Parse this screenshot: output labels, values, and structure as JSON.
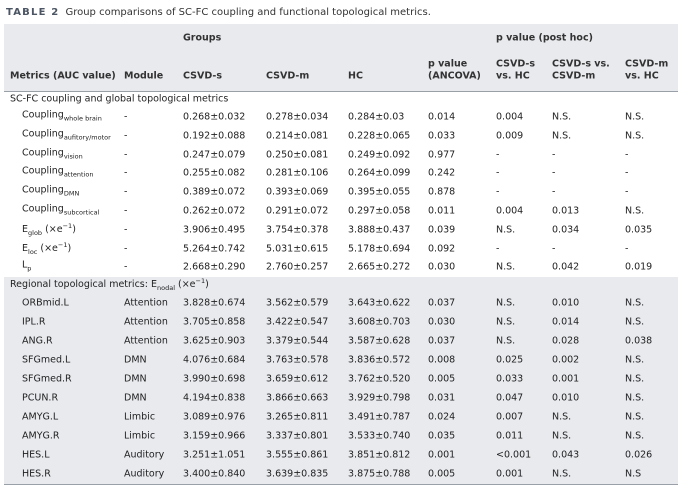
{
  "caption": {
    "number": "TABLE 2",
    "title": "Group comparisons of SC-FC coupling and functional topological metrics."
  },
  "header": {
    "groups": "Groups",
    "posthoc": "p value (post hoc)",
    "columns": [
      [
        "Metrics (AUC value)"
      ],
      [
        "Module"
      ],
      [
        "CSVD-s"
      ],
      [
        "CSVD-m"
      ],
      [
        "HC"
      ],
      [
        "p value",
        "(ANCOVA)"
      ],
      [
        "CSVD-s",
        "vs. HC"
      ],
      [
        "CSVD-s vs.",
        "CSVD-m"
      ],
      [
        "CSVD-m",
        "vs. HC"
      ]
    ]
  },
  "sections": [
    {
      "title": {
        "text": "SC-FC coupling and global topological metrics"
      },
      "rows": [
        {
          "label": {
            "text": "Coupling",
            "sub": "whole brain"
          },
          "cells": [
            "-",
            "0.268±0.032",
            "0.278±0.034",
            "0.284±0.03",
            "0.014",
            "0.004",
            "N.S.",
            "N.S."
          ]
        },
        {
          "label": {
            "text": "Coupling",
            "sub": "aufitory/motor"
          },
          "cells": [
            "-",
            "0.192±0.088",
            "0.214±0.081",
            "0.228±0.065",
            "0.033",
            "0.009",
            "N.S.",
            "N.S."
          ]
        },
        {
          "label": {
            "text": "Coupling",
            "sub": "vision"
          },
          "cells": [
            "-",
            "0.247±0.079",
            "0.250±0.081",
            "0.249±0.092",
            "0.977",
            "-",
            "-",
            "-"
          ]
        },
        {
          "label": {
            "text": "Coupling",
            "sub": "attention"
          },
          "cells": [
            "-",
            "0.255±0.082",
            "0.281±0.106",
            "0.264±0.099",
            "0.242",
            "-",
            "-",
            "-"
          ]
        },
        {
          "label": {
            "text": "Coupling",
            "sub": "DMN"
          },
          "cells": [
            "-",
            "0.389±0.072",
            "0.393±0.069",
            "0.395±0.055",
            "0.878",
            "-",
            "-",
            "-"
          ]
        },
        {
          "label": {
            "text": "Coupling",
            "sub": "subcortical"
          },
          "cells": [
            "-",
            "0.262±0.072",
            "0.291±0.072",
            "0.297±0.058",
            "0.011",
            "0.004",
            "0.013",
            "N.S."
          ]
        },
        {
          "label": {
            "text": "E",
            "sub": "glob",
            "suffix": " (×e",
            "sup": "−1",
            "end": ")"
          },
          "cells": [
            "-",
            "3.906±0.495",
            "3.754±0.378",
            "3.888±0.437",
            "0.039",
            "N.S.",
            "0.034",
            "0.035"
          ]
        },
        {
          "label": {
            "text": "E",
            "sub": "loc",
            "suffix": " (×e",
            "sup": "−1",
            "end": ")"
          },
          "cells": [
            "-",
            "5.264±0.742",
            "5.031±0.615",
            "5.178±0.694",
            "0.092",
            "-",
            "-",
            "-"
          ]
        },
        {
          "label": {
            "text": "L",
            "sub": "p"
          },
          "cells": [
            "-",
            "2.668±0.290",
            "2.760±0.257",
            "2.665±0.272",
            "0.030",
            "N.S.",
            "0.042",
            "0.019"
          ]
        }
      ]
    },
    {
      "title": {
        "text": "Regional topological metrics: E",
        "sub": "nodal",
        "suffix": " (×e",
        "sup": "−1",
        "end": ")"
      },
      "rows": [
        {
          "label": {
            "text": "ORBmid.L"
          },
          "cells": [
            "Attention",
            "3.828±0.674",
            "3.562±0.579",
            "3.643±0.622",
            "0.037",
            "N.S.",
            "0.010",
            "N.S."
          ]
        },
        {
          "label": {
            "text": "IPL.R"
          },
          "cells": [
            "Attention",
            "3.705±0.858",
            "3.422±0.547",
            "3.608±0.703",
            "0.030",
            "N.S.",
            "0.014",
            "N.S."
          ]
        },
        {
          "label": {
            "text": "ANG.R"
          },
          "cells": [
            "Attention",
            "3.625±0.903",
            "3.379±0.544",
            "3.587±0.628",
            "0.037",
            "N.S.",
            "0.028",
            "0.038"
          ]
        },
        {
          "label": {
            "text": "SFGmed.L"
          },
          "cells": [
            "DMN",
            "4.076±0.684",
            "3.763±0.578",
            "3.836±0.572",
            "0.008",
            "0.025",
            "0.002",
            "N.S."
          ]
        },
        {
          "label": {
            "text": "SFGmed.R"
          },
          "cells": [
            "DMN",
            "3.990±0.698",
            "3.659±0.612",
            "3.762±0.520",
            "0.005",
            "0.033",
            "0.001",
            "N.S."
          ]
        },
        {
          "label": {
            "text": "PCUN.R"
          },
          "cells": [
            "DMN",
            "4.194±0.838",
            "3.866±0.663",
            "3.929±0.798",
            "0.031",
            "0.047",
            "0.010",
            "N.S."
          ]
        },
        {
          "label": {
            "text": "AMYG.L"
          },
          "cells": [
            "Limbic",
            "3.089±0.976",
            "3.265±0.811",
            "3.491±0.787",
            "0.024",
            "0.007",
            "N.S.",
            "N.S."
          ]
        },
        {
          "label": {
            "text": "AMYG.R"
          },
          "cells": [
            "Limbic",
            "3.159±0.966",
            "3.337±0.801",
            "3.533±0.740",
            "0.035",
            "0.011",
            "N.S.",
            "N.S."
          ]
        },
        {
          "label": {
            "text": "HES.L"
          },
          "cells": [
            "Auditory",
            "3.251±1.051",
            "3.555±0.861",
            "3.851±0.812",
            "0.001",
            "<0.001",
            "0.043",
            "0.026"
          ]
        },
        {
          "label": {
            "text": "HES.R"
          },
          "cells": [
            "Auditory",
            "3.400±0.840",
            "3.639±0.835",
            "3.875±0.788",
            "0.005",
            "0.001",
            "N.S.",
            "N.S"
          ]
        }
      ]
    }
  ]
}
